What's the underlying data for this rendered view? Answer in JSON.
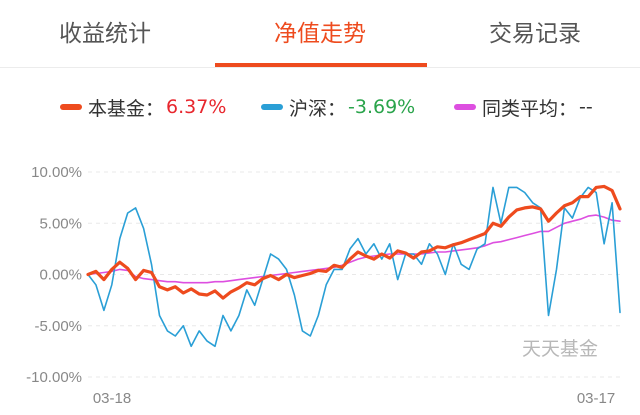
{
  "tabs": [
    {
      "label": "收益统计",
      "active": false
    },
    {
      "label": "净值走势",
      "active": true
    },
    {
      "label": "交易记录",
      "active": false
    }
  ],
  "legend": [
    {
      "label": "本基金：",
      "value": "6.37%",
      "swatch_color": "#ee4b1e",
      "value_color": "#e8262d"
    },
    {
      "label": "沪深：",
      "value": "-3.69%",
      "swatch_color": "#2a9fd6",
      "value_color": "#2aa44b"
    },
    {
      "label": "同类平均：",
      "value": "--",
      "swatch_color": "#dd4fe0",
      "value_color": "#333333"
    }
  ],
  "watermark": "天天基金",
  "chart_data": {
    "type": "line",
    "x_tick_labels": [
      "03-18",
      "03-17"
    ],
    "y_tick_labels": [
      "10.00%",
      "5.00%",
      "0.00%",
      "-5.00%",
      "-10.00%"
    ],
    "ylim": [
      -10,
      10
    ],
    "grid": true,
    "series": [
      {
        "name": "本基金",
        "color": "#ee4b1e",
        "values": [
          0,
          0.3,
          -0.5,
          0.5,
          1.2,
          0.6,
          -0.5,
          0.4,
          0.2,
          -1.2,
          -1.5,
          -1.2,
          -1.8,
          -1.4,
          -1.9,
          -2,
          -1.6,
          -2.3,
          -1.7,
          -1.3,
          -0.8,
          -1,
          -0.4,
          -0.1,
          -0.5,
          0,
          -0.3,
          -0.1,
          0.1,
          0.4,
          0.3,
          0.9,
          0.7,
          1.5,
          2.2,
          1.8,
          1.5,
          2,
          1.6,
          2.3,
          2.1,
          1.6,
          2.2,
          2.3,
          2.7,
          2.6,
          2.9,
          3.1,
          3.4,
          3.7,
          4,
          5,
          4.7,
          5.6,
          6.3,
          6.5,
          6.6,
          6.4,
          5.2,
          6,
          6.7,
          7,
          7.6,
          7.6,
          8.5,
          8.6,
          8.2,
          6.4
        ]
      },
      {
        "name": "沪深",
        "color": "#2a9fd6",
        "values": [
          0,
          -1,
          -3.5,
          -1,
          3.5,
          6,
          6.5,
          4.5,
          1,
          -4,
          -5.5,
          -6,
          -5,
          -7,
          -5.5,
          -6.5,
          -7,
          -4,
          -5.5,
          -4,
          -1.5,
          -3,
          -0.5,
          2,
          1.5,
          0.5,
          -2,
          -5.5,
          -6,
          -4,
          -1,
          0.5,
          0.5,
          2.5,
          3.5,
          2,
          3,
          1.5,
          3,
          -0.5,
          2,
          2,
          1,
          3,
          2,
          0,
          3,
          1,
          0.5,
          2.5,
          3,
          8.5,
          5,
          8.5,
          8.5,
          8,
          7,
          6.5,
          -4,
          0.5,
          6.5,
          5.5,
          7.5,
          8.5,
          8,
          3,
          7,
          -3.7
        ]
      },
      {
        "name": "同类平均",
        "color": "#dd4fe0",
        "values": [
          0,
          0.1,
          0.2,
          0.3,
          0.5,
          0.4,
          -0.2,
          -0.4,
          -0.5,
          -0.6,
          -0.7,
          -0.7,
          -0.8,
          -0.8,
          -0.8,
          -0.8,
          -0.7,
          -0.7,
          -0.6,
          -0.5,
          -0.4,
          -0.3,
          -0.2,
          -0.1,
          0,
          0.1,
          0.2,
          0.3,
          0.4,
          0.5,
          0.6,
          0.7,
          0.9,
          1.2,
          1.5,
          1.7,
          1.8,
          1.9,
          2,
          2,
          2,
          2,
          2,
          2.1,
          2.2,
          2.2,
          2.3,
          2.4,
          2.5,
          2.6,
          2.8,
          3.1,
          3.2,
          3.4,
          3.6,
          3.8,
          4,
          4.2,
          4.2,
          4.6,
          5,
          5.2,
          5.4,
          5.7,
          5.8,
          5.6,
          5.3,
          5.2
        ]
      }
    ]
  }
}
